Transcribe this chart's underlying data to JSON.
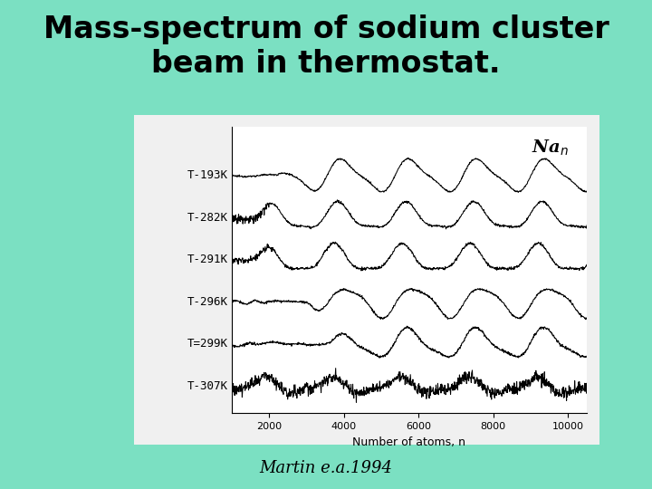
{
  "title": "Mass-spectrum of sodium cluster\nbeam in thermostat.",
  "citation": "Martin e.a.1994",
  "xlabel": "Number of atoms, n",
  "xticks": [
    2000,
    4000,
    6000,
    8000,
    10000
  ],
  "background_color": "#7BE0C2",
  "plot_bg_color": "#F0F0F0",
  "inner_bg_color": "#FFFFFF",
  "line_color": "#000000",
  "temperatures": [
    "T-193K",
    "T-282K",
    "T-291K",
    "T-296K",
    "T=299K",
    "T-307K"
  ],
  "x_range": [
    1000,
    10500
  ],
  "title_fontsize": 24,
  "label_fontsize": 9,
  "tick_fontsize": 8,
  "temp_fontsize": 9
}
